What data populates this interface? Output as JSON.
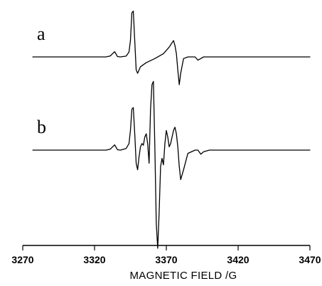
{
  "chart_data": {
    "type": "line",
    "title": "",
    "xlabel": "MAGNETIC FIELD /G",
    "ylabel": "",
    "xlim": [
      3270,
      3470
    ],
    "x_ticks": [
      "3270",
      "3320",
      "3370",
      "3420",
      "3470"
    ],
    "grid": false,
    "legend": "none",
    "series": [
      {
        "label": "a",
        "x": [
          3277,
          3328,
          3331,
          3332,
          3334,
          3336,
          3338,
          3342,
          3344,
          3345,
          3346,
          3347,
          3348,
          3349,
          3350,
          3352,
          3356,
          3362,
          3368,
          3372,
          3375,
          3376,
          3377,
          3378,
          3379,
          3380,
          3382,
          3385,
          3390,
          3392,
          3394,
          3396,
          3400,
          3470
        ],
        "y": [
          0,
          0,
          0.6,
          1.5,
          3.2,
          0.2,
          0,
          0.5,
          3,
          10,
          27,
          28,
          10,
          -8,
          -10,
          -6,
          -3.5,
          -1,
          2,
          6,
          10,
          7,
          2,
          -8,
          -17,
          -10,
          -1,
          0,
          0,
          -2,
          -1,
          0,
          0,
          0
        ]
      },
      {
        "label": "b",
        "x": [
          3277,
          3328,
          3331,
          3332,
          3334,
          3336,
          3338,
          3342,
          3344,
          3345,
          3346,
          3347,
          3348,
          3349,
          3350,
          3351,
          3352,
          3353,
          3354,
          3355,
          3356,
          3357,
          3358,
          3359,
          3360,
          3361,
          3362,
          3363,
          3364,
          3365,
          3366,
          3367,
          3368,
          3369,
          3370,
          3371,
          3372,
          3373,
          3374,
          3375,
          3376,
          3377,
          3378,
          3379,
          3380,
          3382,
          3385,
          3390,
          3392,
          3394,
          3396,
          3400,
          3470
        ],
        "y": [
          0,
          0,
          0.6,
          1.5,
          3.2,
          0.2,
          0,
          1,
          4,
          12,
          25,
          26,
          10,
          -8,
          -12,
          -4,
          2,
          4,
          3,
          8,
          10,
          4,
          -8,
          25,
          40,
          42,
          2,
          -45,
          -60,
          -38,
          -10,
          -5,
          -9,
          4,
          12,
          8,
          2,
          4,
          8,
          12,
          14,
          10,
          2,
          -10,
          -18,
          -12,
          -2,
          0,
          0,
          -2.5,
          -1,
          0,
          0
        ]
      }
    ]
  }
}
